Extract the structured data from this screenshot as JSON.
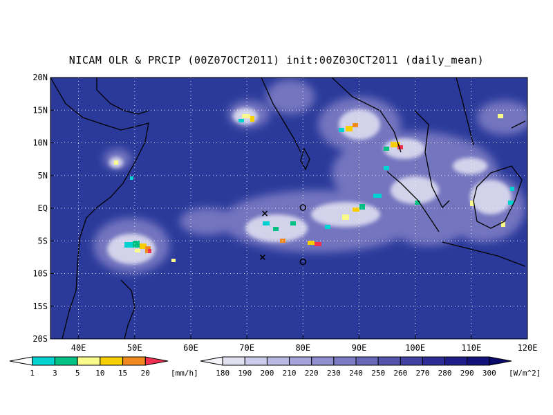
{
  "title": "NICAM OLR & PRCIP (00Z07OCT2011) init:00Z03OCT2011 (daily_mean)",
  "map": {
    "lon_range": [
      35,
      120
    ],
    "lat_range": [
      -20,
      20
    ],
    "lon_ticks": [
      "40E",
      "50E",
      "60E",
      "70E",
      "80E",
      "90E",
      "100E",
      "110E",
      "120E"
    ],
    "lon_tick_values": [
      40,
      50,
      60,
      70,
      80,
      90,
      100,
      110,
      120
    ],
    "lat_ticks": [
      "20N",
      "15N",
      "10N",
      "5N",
      "EQ",
      "5S",
      "10S",
      "15S",
      "20S"
    ],
    "lat_tick_values": [
      20,
      15,
      10,
      5,
      0,
      -5,
      -10,
      -15,
      -20
    ],
    "grid": "dotted",
    "background_color": "#2b3a9a",
    "markers": [
      {
        "symbol": "x",
        "lon": 73.2,
        "lat": -0.8
      },
      {
        "symbol": "x",
        "lon": 72.8,
        "lat": -7.5
      },
      {
        "symbol": "o",
        "lon": 80.0,
        "lat": 0.1
      },
      {
        "symbol": "o",
        "lon": 80.0,
        "lat": -8.2
      }
    ]
  },
  "precip_colorbar": {
    "labels": [
      "1",
      "3",
      "5",
      "10",
      "15",
      "20"
    ],
    "unit": "[mm/h]",
    "colors": [
      "#00d2d2",
      "#00c083",
      "#fbfb8c",
      "#f7cf00",
      "#f08a1e",
      "#f03050"
    ]
  },
  "olr_colorbar": {
    "labels": [
      "180",
      "190",
      "200",
      "210",
      "220",
      "230",
      "240",
      "250",
      "260",
      "270",
      "280",
      "290",
      "300"
    ],
    "unit": "[W/m^2]",
    "colors": [
      "#f4f4fa",
      "#e0e0f0",
      "#ccccea",
      "#b8b8e2",
      "#a4a4da",
      "#9090d0",
      "#7c7cc4",
      "#6868b8",
      "#5454ac",
      "#4040a0",
      "#2c2c94",
      "#1e1e88",
      "#12127a",
      "#0a0a6c"
    ]
  }
}
